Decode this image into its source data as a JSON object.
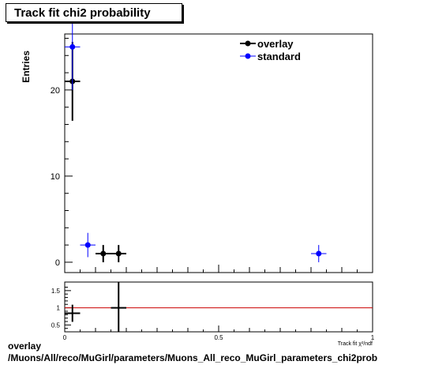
{
  "title": "Track fit chi2 probability",
  "footer": {
    "line1": "overlay",
    "line2": "/Muons/All/reco/MuGirl/parameters/Muons_All_reco_MuGirl_parameters_chi2prob"
  },
  "chart_data": [
    {
      "type": "scatter",
      "title": "Track fit chi2 probability",
      "ylabel": "Entries",
      "xlabel": "Track fit χ²/ndf",
      "xlim": [
        0,
        1
      ],
      "ylim": [
        -1.2,
        26.5
      ],
      "yticks": [
        0,
        10,
        20
      ],
      "legend_placement": "top-right",
      "series": [
        {
          "name": "overlay",
          "color": "#000000",
          "points": [
            {
              "x": 0.025,
              "y": 21,
              "xerr": 0.025,
              "yerr": 4.58
            },
            {
              "x": 0.125,
              "y": 1,
              "xerr": 0.025,
              "yerr": 1
            },
            {
              "x": 0.175,
              "y": 1,
              "xerr": 0.025,
              "yerr": 1
            }
          ]
        },
        {
          "name": "standard",
          "color": "#0000ff",
          "points": [
            {
              "x": 0.025,
              "y": 25,
              "xerr": 0.025,
              "yerr": 5
            },
            {
              "x": 0.075,
              "y": 2,
              "xerr": 0.025,
              "yerr": 1.41
            },
            {
              "x": 0.825,
              "y": 1,
              "xerr": 0.025,
              "yerr": 1
            }
          ]
        }
      ]
    },
    {
      "type": "scatter",
      "title": "",
      "ylabel": "",
      "xlim": [
        0,
        1
      ],
      "ylim": [
        0.3,
        1.75
      ],
      "yticks": [
        0.5,
        1,
        1.5
      ],
      "xticks": [
        0,
        0.5,
        1
      ],
      "reference_line": {
        "y": 1,
        "color": "#cc0000"
      },
      "series": [
        {
          "name": "",
          "color": "#000000",
          "points": [
            {
              "x": 0.025,
              "y": 0.84,
              "xerr": 0.025,
              "yerr": 0.25
            },
            {
              "x": 0.175,
              "y": 1.0,
              "xerr": 0.025,
              "yerr": 1.41
            }
          ]
        }
      ]
    }
  ]
}
